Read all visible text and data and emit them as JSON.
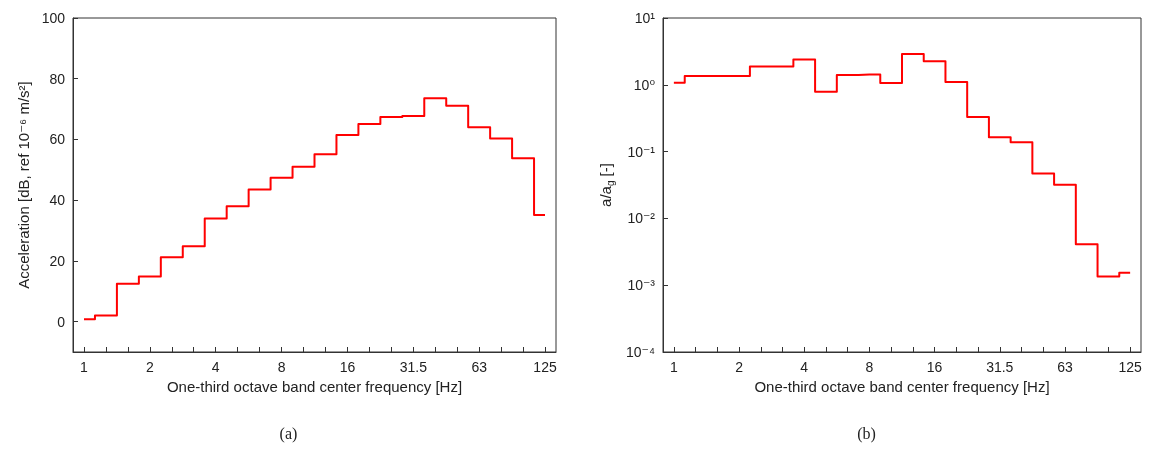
{
  "chart_data": [
    {
      "type": "step",
      "xlabel": "One-third octave band center frequency [Hz]",
      "ylabel": "Acceleration [dB, ref 10⁻⁶ m/s²]",
      "annotations": [
        "(a)"
      ],
      "categories": [
        "1",
        null,
        null,
        "2",
        null,
        null,
        "4",
        null,
        null,
        "8",
        null,
        null,
        "16",
        null,
        null,
        "31.5",
        null,
        null,
        "63",
        null,
        null,
        "125"
      ],
      "values": [
        0.8,
        2.0,
        12.5,
        14.9,
        21.2,
        24.8,
        34.0,
        38.0,
        43.5,
        47.4,
        51.0,
        55.1,
        61.5,
        65.1,
        67.4,
        67.7,
        73.6,
        71.1,
        64.0,
        60.3,
        53.8,
        35.1
      ],
      "color": "#ff0000",
      "marker": "none",
      "grid": false,
      "ylim": [
        -10,
        100
      ],
      "yticks": [
        0,
        20,
        40,
        60,
        80,
        100
      ]
    },
    {
      "type": "step",
      "xlabel": "One-third octave band center frequency [Hz]",
      "ylabel": "a/a$_{g}$ [-]",
      "annotations": [
        "(b)"
      ],
      "categories": [
        "1",
        null,
        null,
        "2",
        null,
        null,
        "4",
        null,
        null,
        "8",
        null,
        null,
        "16",
        null,
        null,
        "31.5",
        null,
        null,
        "63",
        null,
        null,
        "125"
      ],
      "values": [
        1.07,
        1.36,
        1.36,
        1.36,
        1.88,
        1.88,
        2.4,
        0.79,
        1.4,
        1.43,
        1.06,
        2.9,
        2.26,
        1.1,
        0.33,
        0.164,
        0.138,
        0.047,
        0.032,
        0.0041,
        0.00135,
        0.00153
      ],
      "color": "#ff0000",
      "marker": "none",
      "grid": false,
      "log": true,
      "ylim": [
        0.0001,
        10
      ],
      "yticks": [
        {
          "value": 0.0001,
          "label": "10⁻⁴"
        },
        {
          "value": 0.001,
          "label": "10⁻³"
        },
        {
          "value": 0.01,
          "label": "10⁻²"
        },
        {
          "value": 0.1,
          "label": "10⁻¹"
        },
        {
          "value": 1,
          "label": "10⁰"
        },
        {
          "value": 10,
          "label": "10¹"
        }
      ]
    }
  ]
}
